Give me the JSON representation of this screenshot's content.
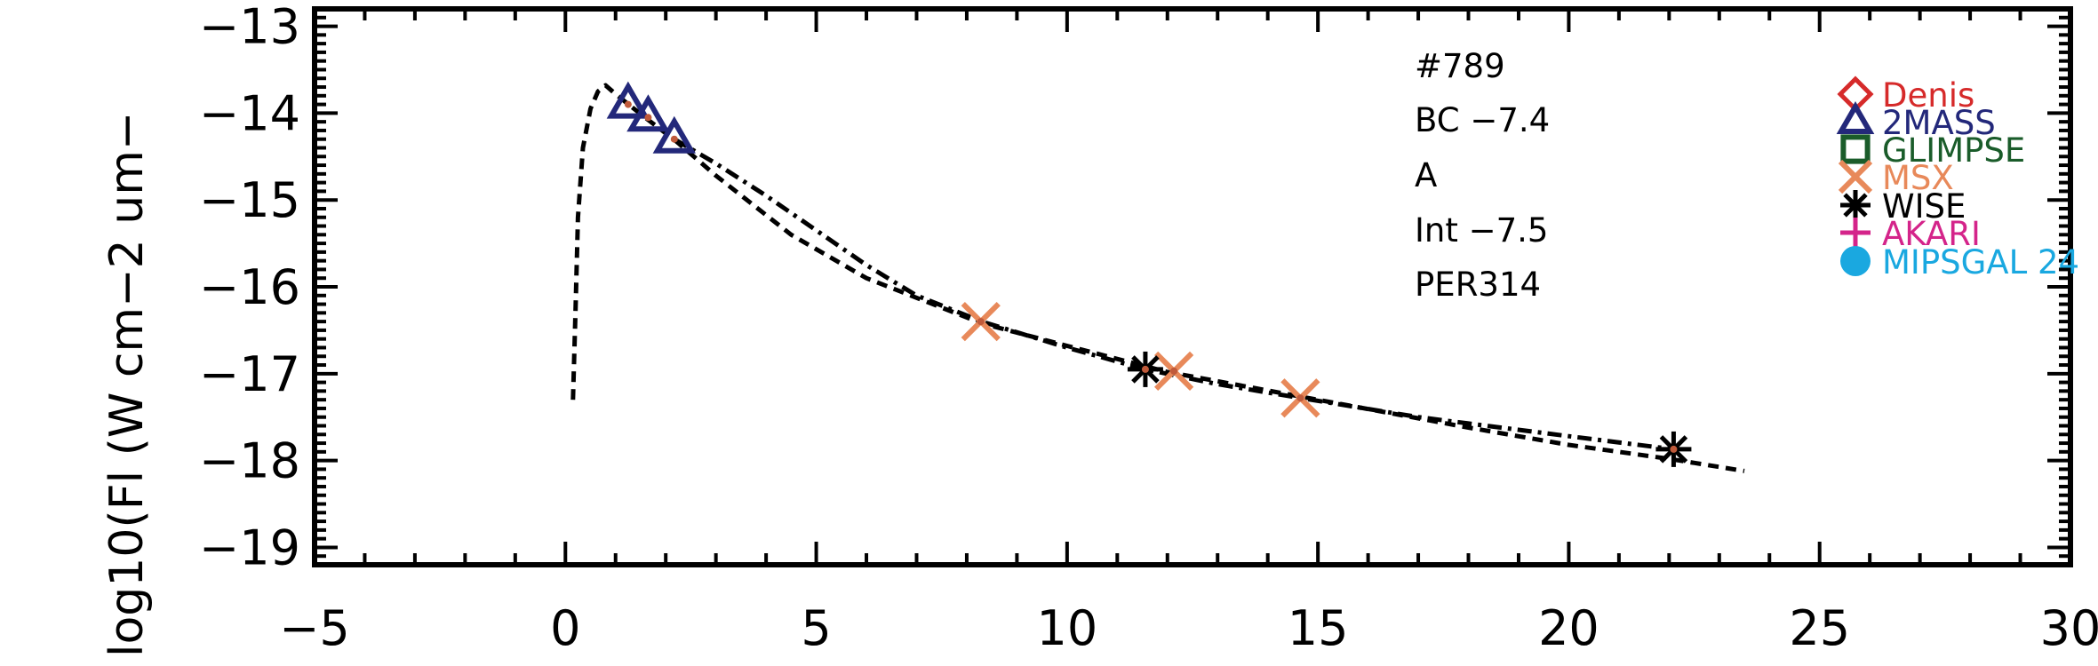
{
  "chart_data": {
    "type": "scatter",
    "title": "",
    "xlabel": "",
    "ylabel": "log10(Fl (W cm−2 um−",
    "xlim": [
      -5,
      30
    ],
    "ylim": [
      -19.2,
      -12.8
    ],
    "x_ticks": [
      -5,
      0,
      5,
      10,
      15,
      20,
      25,
      30
    ],
    "x_tick_labels": [
      "−5",
      "0",
      "5",
      "10",
      "15",
      "20",
      "25",
      "30"
    ],
    "y_ticks": [
      -19,
      -18,
      -17,
      -16,
      -15,
      -14,
      -13
    ],
    "y_tick_labels": [
      "−19",
      "−18",
      "−17",
      "−16",
      "−15",
      "−14",
      "−13"
    ],
    "annotations": [
      "#789",
      "BC −7.4",
      "A",
      "Int −7.5",
      "PER314"
    ],
    "legend": [
      {
        "name": "Denis",
        "marker": "diamond",
        "color": "#d62a2a"
      },
      {
        "name": "2MASS",
        "marker": "triangle",
        "color": "#23287a"
      },
      {
        "name": "GLIMPSE",
        "marker": "square",
        "color": "#1a5c2a"
      },
      {
        "name": "MSX",
        "marker": "x",
        "color": "#e8895a"
      },
      {
        "name": "WISE",
        "marker": "asterisk",
        "color": "#000000"
      },
      {
        "name": "AKARI",
        "marker": "plus",
        "color": "#d4248a"
      },
      {
        "name": "MIPSGAL 24",
        "marker": "circle",
        "color": "#1aa8e0"
      }
    ],
    "series": [
      {
        "name": "2MASS",
        "marker": "triangle",
        "color": "#23287a",
        "x": [
          1.25,
          1.65,
          2.17
        ],
        "y": [
          -13.9,
          -14.05,
          -14.3
        ]
      },
      {
        "name": "MSX",
        "marker": "x",
        "color": "#e8895a",
        "x": [
          8.28,
          12.13,
          14.65
        ],
        "y": [
          -16.4,
          -16.97,
          -17.28
        ]
      },
      {
        "name": "WISE",
        "marker": "asterisk",
        "color": "#000000",
        "x": [
          11.56,
          22.09
        ],
        "y": [
          -16.95,
          -17.87
        ]
      },
      {
        "name": "model_dashed",
        "line": "dashed",
        "color": "#000000",
        "x": [
          0.15,
          0.2,
          0.25,
          0.35,
          0.5,
          0.65,
          0.8,
          1.0,
          1.3,
          1.7,
          2.2,
          3.0,
          4.5,
          6.0,
          8.3,
          10.0,
          12.0,
          15.0,
          18.0,
          20.0,
          22.0,
          23.5
        ],
        "y": [
          -17.3,
          -16.3,
          -15.2,
          -14.4,
          -13.95,
          -13.75,
          -13.68,
          -13.78,
          -13.92,
          -14.1,
          -14.32,
          -14.72,
          -15.4,
          -15.9,
          -16.42,
          -16.68,
          -16.98,
          -17.3,
          -17.62,
          -17.82,
          -17.98,
          -18.12
        ]
      },
      {
        "name": "model_dashdot",
        "line": "dashdot",
        "color": "#000000",
        "x": [
          2.17,
          3.0,
          4.0,
          5.0,
          6.0,
          7.0,
          8.3,
          10.0,
          11.56,
          13.0,
          14.65,
          17.0,
          20.0,
          22.09
        ],
        "y": [
          -14.3,
          -14.58,
          -14.95,
          -15.35,
          -15.75,
          -16.1,
          -16.4,
          -16.7,
          -16.95,
          -17.12,
          -17.28,
          -17.5,
          -17.72,
          -17.87
        ]
      }
    ]
  }
}
